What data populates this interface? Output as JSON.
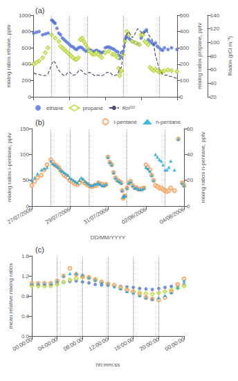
{
  "chart_data": [
    {
      "type": "scatter",
      "title": "(a)",
      "ylabel": "mixing ratios ethane, pptv",
      "y2label": "mixing ratios propane, pptv",
      "y3label": "Radon (pCi m⁻³)",
      "xlim": [
        0,
        8
      ],
      "xticks": [
        0.0,
        2.0,
        4.0,
        6.0,
        8.0
      ],
      "ylim": [
        0,
        1000
      ],
      "yticks": [
        0,
        200,
        400,
        600,
        800,
        1000
      ],
      "y2lim": [
        0,
        500
      ],
      "y2ticks": [
        0,
        100,
        200,
        300,
        400,
        500
      ],
      "y3lim": [
        20,
        140
      ],
      "y3ticks": [
        20,
        40,
        60,
        80,
        100,
        120,
        140
      ],
      "tick_labels": "y",
      "grid": false,
      "legend": "lower left",
      "vlines": [
        1.0,
        2.0,
        3.0,
        5.0,
        7.0
      ],
      "series": [
        {
          "name": "ethane",
          "marker": "circle",
          "axis": "y",
          "x": [
            0.0,
            0.15,
            0.3,
            0.5,
            0.65,
            0.8,
            1.0,
            1.05,
            1.1,
            1.15,
            1.2,
            1.3,
            1.4,
            1.5,
            1.6,
            1.7,
            1.8,
            1.9,
            2.0,
            2.1,
            2.2,
            2.3,
            2.4,
            2.5,
            2.6,
            2.7,
            2.8,
            2.9,
            3.0,
            3.1,
            3.2,
            3.3,
            3.4,
            3.5,
            3.6,
            3.7,
            3.8,
            3.9,
            4.0,
            4.1,
            4.2,
            4.3,
            4.4,
            4.5,
            4.6,
            4.7,
            4.75,
            4.8,
            4.85,
            4.9,
            5.0,
            5.05,
            5.1,
            5.15,
            5.2,
            5.3,
            5.4,
            5.5,
            5.6,
            5.7,
            5.8,
            5.9,
            6.0,
            6.05,
            6.1,
            6.2,
            6.3,
            6.4,
            6.5,
            6.6,
            6.7,
            6.8,
            6.9,
            7.0,
            7.1,
            7.2,
            7.3,
            7.5,
            7.7,
            8.0
          ],
          "values": [
            780,
            790,
            800,
            760,
            770,
            780,
            940,
            935,
            920,
            910,
            900,
            840,
            780,
            760,
            720,
            700,
            680,
            660,
            640,
            620,
            610,
            590,
            580,
            600,
            610,
            600,
            580,
            560,
            560,
            580,
            570,
            550,
            560,
            570,
            560,
            550,
            540,
            550,
            600,
            610,
            610,
            600,
            590,
            580,
            560,
            550,
            510,
            470,
            490,
            540,
            560,
            620,
            700,
            730,
            750,
            720,
            700,
            680,
            670,
            660,
            650,
            640,
            720,
            750,
            780,
            800,
            820,
            700,
            680,
            660,
            640,
            660,
            620,
            600,
            580,
            570,
            600,
            580,
            600,
            580
          ]
        },
        {
          "name": "propane",
          "marker": "emptyDiamond",
          "axis": "y2",
          "x": [
            0.0,
            0.15,
            0.3,
            0.5,
            0.65,
            0.8,
            1.0,
            1.2,
            1.4,
            1.5,
            1.6,
            1.7,
            1.8,
            1.9,
            2.0,
            2.1,
            2.2,
            2.3,
            2.4,
            2.5,
            2.6,
            2.7,
            2.8,
            2.9,
            3.0,
            3.1,
            3.2,
            3.3,
            3.4,
            3.5,
            3.6,
            3.7,
            3.8,
            4.0,
            4.2,
            4.4,
            4.5,
            4.6,
            4.7,
            4.75,
            4.8,
            4.85,
            4.9,
            5.0,
            5.1,
            5.2,
            5.3,
            5.5,
            5.7,
            5.9,
            6.0,
            6.1,
            6.2,
            6.3,
            6.4,
            6.5,
            6.6,
            6.7,
            6.8,
            6.9,
            7.0,
            7.1,
            7.2,
            7.3,
            7.5,
            7.7,
            8.0
          ],
          "values": [
            200,
            210,
            220,
            240,
            270,
            300,
            380,
            360,
            340,
            310,
            300,
            290,
            280,
            270,
            260,
            250,
            240,
            230,
            230,
            240,
            350,
            360,
            340,
            320,
            300,
            280,
            270,
            260,
            260,
            270,
            260,
            250,
            240,
            270,
            280,
            260,
            260,
            250,
            240,
            175,
            130,
            155,
            160,
            260,
            340,
            400,
            380,
            340,
            330,
            320,
            380,
            380,
            340,
            330,
            320,
            180,
            170,
            160,
            170,
            160,
            150,
            150,
            155,
            160,
            165,
            160,
            155
          ]
        },
        {
          "name": "Rn²²²",
          "type": "line",
          "line_style": "dashed",
          "axis": "y3",
          "x": [
            0.0,
            0.1,
            0.2,
            0.3,
            0.4,
            0.5,
            0.6,
            0.7,
            0.8,
            0.9,
            1.0,
            1.1,
            1.2,
            1.3,
            1.4,
            1.5,
            1.6,
            1.7,
            1.8,
            1.9,
            2.0,
            2.1,
            2.2,
            2.3,
            2.4,
            2.5,
            2.6,
            2.7,
            2.8,
            2.9,
            3.0,
            3.1,
            3.2,
            3.3,
            3.4,
            3.5,
            3.6,
            3.7,
            3.8,
            3.9,
            4.0,
            4.1,
            4.2,
            4.3,
            4.4,
            4.5,
            4.6,
            4.7,
            4.8,
            4.9,
            5.0,
            5.1,
            5.2,
            5.3,
            5.4,
            5.5,
            5.6,
            5.7,
            5.8,
            5.9,
            6.0,
            6.1,
            6.2,
            6.3,
            6.4,
            6.5,
            6.6,
            6.7,
            6.8,
            6.9,
            7.0,
            7.1,
            7.2,
            7.3,
            7.4,
            7.5,
            7.6,
            7.7,
            7.8,
            7.9,
            8.0
          ],
          "values": [
            55,
            54,
            53,
            53,
            52,
            51,
            51,
            52,
            54,
            60,
            68,
            73,
            70,
            64,
            59,
            56,
            53,
            51,
            52,
            56,
            57,
            54,
            52,
            52,
            54,
            58,
            60,
            58,
            55,
            53,
            54,
            56,
            55,
            53,
            51,
            52,
            52,
            51,
            51,
            52,
            54,
            56,
            56,
            55,
            52,
            51,
            52,
            53,
            62,
            63,
            85,
            100,
            112,
            116,
            112,
            107,
            110,
            115,
            120,
            118,
            115,
            112,
            115,
            118,
            112,
            108,
            105,
            98,
            80,
            72,
            62,
            57,
            53,
            52,
            52,
            52,
            50,
            50,
            49,
            48,
            47
          ]
        }
      ]
    },
    {
      "type": "scatter",
      "title": "(b)",
      "xlabel": "DD/MM/YYYY",
      "ylabel": "mixing ratios i-pentane, pptv",
      "y2label": "mixing ratios n-pentane, pptv",
      "xlim": [
        0,
        8
      ],
      "xticks": [
        {
          "value": 0.0,
          "label": "27/07/2006"
        },
        {
          "value": 2.0,
          "label": "29/07/2006"
        },
        {
          "value": 4.0,
          "label": "31/07/2006"
        },
        {
          "value": 6.0,
          "label": "02/08/2006"
        },
        {
          "value": 8.0,
          "label": "04/08/2006"
        }
      ],
      "ylim": [
        0,
        150
      ],
      "yticks": [
        0,
        50,
        100,
        150
      ],
      "y2lim": [
        0,
        60
      ],
      "y2ticks": [
        0,
        20,
        40,
        60
      ],
      "grid": false,
      "legend": "upper right",
      "vlines": [
        1.0,
        2.0,
        3.0,
        5.0,
        7.0
      ],
      "series": [
        {
          "name": "i-pentane",
          "marker": "emptyCircle",
          "axis": "y",
          "x": [
            0.0,
            0.15,
            0.3,
            0.5,
            0.65,
            0.8,
            1.0,
            1.1,
            1.2,
            1.3,
            1.4,
            1.5,
            1.6,
            1.7,
            1.8,
            1.9,
            2.0,
            2.1,
            2.2,
            2.3,
            2.4,
            2.5,
            2.6,
            2.7,
            2.8,
            2.9,
            3.0,
            3.1,
            3.2,
            3.3,
            3.4,
            3.5,
            3.6,
            3.7,
            3.8,
            3.9,
            4.0,
            4.1,
            4.2,
            4.3,
            4.4,
            4.5,
            4.6,
            4.7,
            4.75,
            4.8,
            4.85,
            4.9,
            5.0,
            5.1,
            5.2,
            5.3,
            5.4,
            5.5,
            5.6,
            5.7,
            5.8,
            5.9,
            6.0,
            6.1,
            6.2,
            6.3,
            6.4,
            6.5,
            6.6,
            6.7,
            6.8,
            6.9,
            7.0,
            7.1,
            7.2,
            7.3,
            7.5,
            7.7,
            7.9,
            8.0
          ],
          "values": [
            40,
            48,
            55,
            60,
            70,
            80,
            90,
            85,
            80,
            78,
            75,
            70,
            65,
            60,
            58,
            55,
            50,
            48,
            45,
            43,
            42,
            45,
            50,
            48,
            45,
            42,
            40,
            38,
            38,
            40,
            40,
            45,
            43,
            42,
            40,
            42,
            95,
            85,
            80,
            65,
            55,
            50,
            48,
            45,
            30,
            15,
            18,
            20,
            35,
            45,
            48,
            40,
            36,
            35,
            33,
            33,
            34,
            35,
            80,
            75,
            70,
            60,
            50,
            40,
            38,
            35,
            35,
            32,
            30,
            28,
            30,
            35,
            30,
            130,
            45,
            40
          ]
        },
        {
          "name": "n-pentane",
          "marker": "triangle",
          "axis": "y2",
          "x": [
            0.0,
            0.15,
            0.3,
            0.5,
            0.65,
            0.8,
            1.0,
            1.1,
            1.2,
            1.3,
            1.4,
            1.5,
            1.6,
            1.7,
            1.8,
            1.9,
            2.0,
            2.1,
            2.2,
            2.3,
            2.4,
            2.5,
            2.6,
            2.7,
            2.8,
            2.9,
            3.0,
            3.1,
            3.2,
            3.3,
            3.4,
            3.5,
            3.6,
            3.7,
            3.8,
            3.9,
            4.0,
            4.1,
            4.2,
            4.3,
            4.4,
            4.5,
            4.6,
            4.7,
            4.75,
            4.8,
            4.85,
            4.9,
            5.0,
            5.1,
            5.2,
            5.3,
            5.4,
            5.5,
            5.6,
            5.7,
            5.8,
            5.9,
            6.0,
            6.1,
            6.2,
            6.3,
            6.4,
            6.5,
            6.6,
            6.7,
            6.8,
            6.9,
            7.0,
            7.1,
            7.2,
            7.3,
            7.5,
            7.7,
            7.9,
            8.0
          ],
          "values": [
            20,
            22,
            25,
            28,
            29,
            30,
            35,
            33,
            32,
            31,
            30,
            28,
            27,
            26,
            25,
            24,
            22,
            21,
            20,
            19,
            18,
            20,
            22,
            21,
            19,
            18,
            17,
            16,
            16,
            17,
            17,
            18,
            17,
            16,
            16,
            17,
            38,
            34,
            32,
            26,
            22,
            20,
            19,
            18,
            12,
            7,
            8,
            8,
            14,
            18,
            19,
            16,
            14,
            14,
            13,
            13,
            13,
            14,
            30,
            29,
            27,
            24,
            20,
            40,
            38,
            36,
            35,
            32,
            28,
            28,
            30,
            35,
            28,
            52,
            18,
            16
          ]
        }
      ]
    },
    {
      "type": "scatter",
      "title": "(c)",
      "xlabel": "hh:mm:ss",
      "ylabel": "mean relative mixing ratios",
      "xlim": [
        0,
        24
      ],
      "xticks": [
        {
          "value": 0,
          "label": "00:00:00"
        },
        {
          "value": 4,
          "label": "04:00:00"
        },
        {
          "value": 8,
          "label": "08:00:00"
        },
        {
          "value": 12,
          "label": "12:00:00"
        },
        {
          "value": 16,
          "label": "16:00:00"
        },
        {
          "value": 20,
          "label": "20:00:00"
        },
        {
          "value": 24,
          "label": "00:00:00"
        }
      ],
      "ylim": [
        0.0,
        1.6
      ],
      "yticks": [
        {
          "value": 0.0,
          "label": "0.0"
        },
        0.4,
        0.8,
        1.2,
        1.6
      ],
      "grid": false,
      "vlines": [
        4,
        8,
        12,
        16,
        20
      ],
      "x": [
        0,
        1,
        2,
        3,
        4,
        5,
        6,
        7,
        8,
        9,
        10,
        11,
        12,
        13,
        14,
        15,
        16,
        17,
        18,
        19,
        20,
        21,
        22,
        23,
        24
      ],
      "series": [
        {
          "name": "ethane",
          "marker": "circle",
          "values": [
            1.02,
            1.02,
            1.02,
            1.02,
            1.05,
            1.07,
            1.09,
            1.1,
            1.08,
            1.06,
            1.03,
            1.02,
            1.01,
            1.01,
            0.99,
            0.98,
            0.97,
            0.95,
            0.94,
            0.93,
            0.95,
            0.97,
            0.99,
            1.01,
            1.03
          ]
        },
        {
          "name": "propane",
          "marker": "emptyDiamond",
          "values": [
            1.0,
            1.0,
            1.0,
            1.0,
            1.03,
            1.08,
            1.12,
            1.15,
            1.17,
            1.17,
            1.13,
            1.08,
            1.04,
            1.01,
            0.97,
            0.93,
            0.89,
            0.87,
            0.85,
            0.84,
            0.86,
            0.89,
            0.92,
            0.96,
            1.0
          ]
        },
        {
          "name": "i-pentane",
          "marker": "emptyCircle",
          "values": [
            1.05,
            1.05,
            1.05,
            1.05,
            1.1,
            1.2,
            1.35,
            1.23,
            1.2,
            1.17,
            1.12,
            1.08,
            1.04,
            1.01,
            0.96,
            0.91,
            0.88,
            0.82,
            0.77,
            0.74,
            0.72,
            0.77,
            0.88,
            1.03,
            1.14
          ]
        },
        {
          "name": "n-pentane",
          "marker": "triangle",
          "values": [
            1.05,
            1.05,
            1.05,
            1.05,
            1.1,
            1.2,
            1.25,
            1.25,
            1.22,
            1.17,
            1.12,
            1.07,
            1.04,
            0.99,
            0.95,
            0.89,
            0.86,
            0.81,
            0.77,
            0.74,
            0.77,
            0.81,
            0.87,
            0.97,
            1.1
          ]
        }
      ]
    }
  ]
}
